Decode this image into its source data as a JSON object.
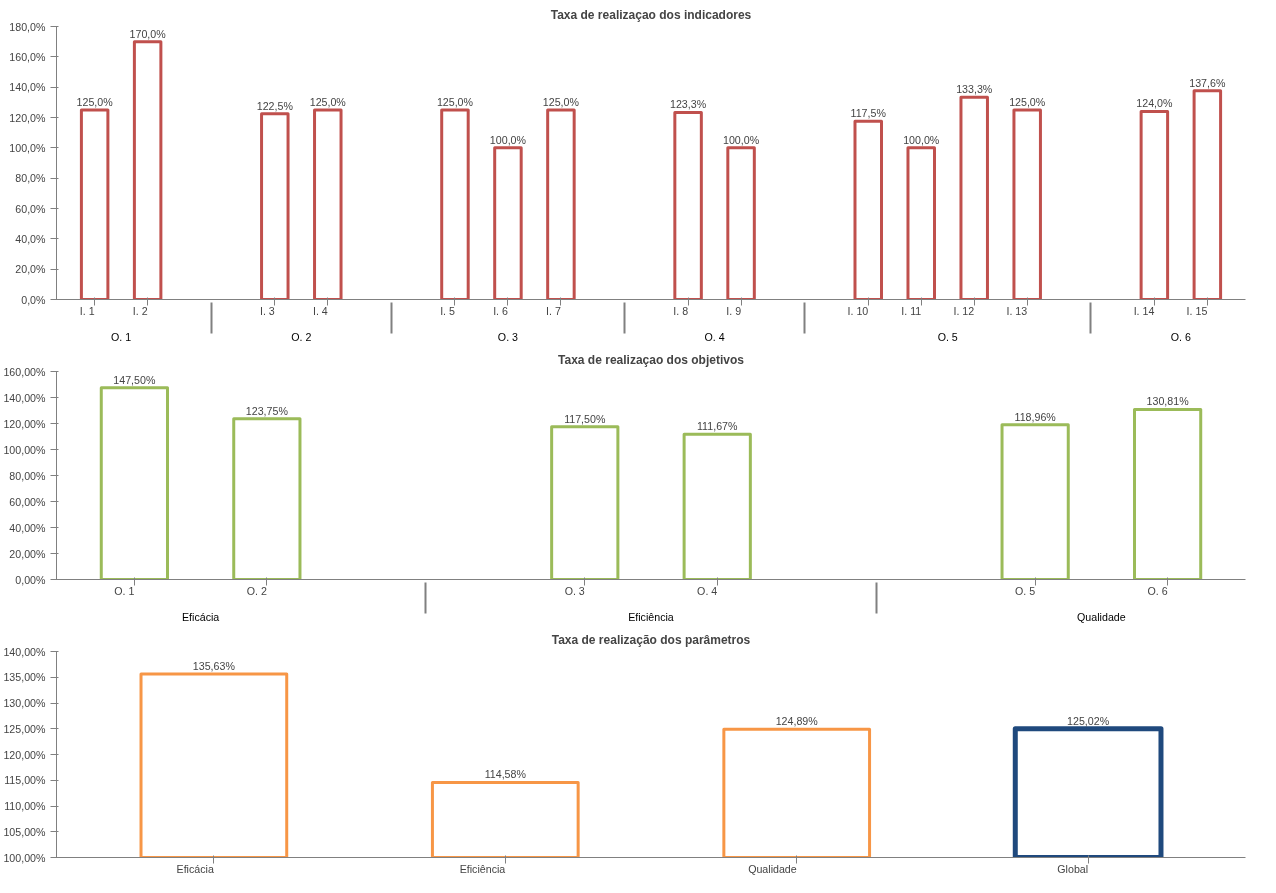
{
  "chart_data": [
    {
      "type": "bar",
      "title": "Taxa de realizaçao dos indicadores",
      "categories": [
        "I. 1",
        "I. 2",
        "I. 3",
        "I. 4",
        "I. 5",
        "I. 6",
        "I. 7",
        "I. 8",
        "I. 9",
        "I. 10",
        "I. 11",
        "I. 12",
        "I. 13",
        "I. 14",
        "I. 15"
      ],
      "values": [
        125.0,
        170.0,
        122.5,
        125.0,
        125.0,
        100.0,
        125.0,
        123.3,
        100.0,
        117.5,
        100.0,
        133.3,
        125.0,
        124.0,
        137.6
      ],
      "value_labels": [
        "125,0%",
        "170,0%",
        "122,5%",
        "125,0%",
        "125,0%",
        "100,0%",
        "125,0%",
        "123,3%",
        "100,0%",
        "117,5%",
        "100,0%",
        "133,3%",
        "125,0%",
        "124,0%",
        "137,6%"
      ],
      "color": "#c0504d",
      "ylim": [
        0,
        180
      ],
      "yticks": [
        {
          "value": 0,
          "label": "0,0%"
        },
        {
          "value": 20,
          "label": "20,0%"
        },
        {
          "value": 40,
          "label": "40,0%"
        },
        {
          "value": 60,
          "label": "60,0%"
        },
        {
          "value": 80,
          "label": "80,0%"
        },
        {
          "value": 100,
          "label": "100,0%"
        },
        {
          "value": 120,
          "label": "120,0%"
        },
        {
          "value": 140,
          "label": "140,0%"
        },
        {
          "value": 160,
          "label": "160,0%"
        },
        {
          "value": 180,
          "label": "180,0%"
        }
      ],
      "annotations": [
        "O. 1",
        "O. 2",
        "O. 3",
        "O. 4",
        "O. 5",
        "O. 6"
      ],
      "grid": false
    },
    {
      "type": "bar",
      "title": "Taxa de realizaçao dos objetivos",
      "categories": [
        "O. 1",
        "O. 2",
        "O. 3",
        "O. 4",
        "O. 5",
        "O. 6"
      ],
      "values": [
        147.5,
        123.75,
        117.5,
        111.67,
        118.96,
        130.81
      ],
      "value_labels": [
        "147,50%",
        "123,75%",
        "117,50%",
        "111,67%",
        "118,96%",
        "130,81%"
      ],
      "color": "#9bbb59",
      "ylim": [
        0,
        160
      ],
      "yticks": [
        {
          "value": 0,
          "label": "0,00%"
        },
        {
          "value": 20,
          "label": "20,00%"
        },
        {
          "value": 40,
          "label": "40,00%"
        },
        {
          "value": 60,
          "label": "60,00%"
        },
        {
          "value": 80,
          "label": "80,00%"
        },
        {
          "value": 100,
          "label": "100,00%"
        },
        {
          "value": 120,
          "label": "120,00%"
        },
        {
          "value": 140,
          "label": "140,00%"
        },
        {
          "value": 160,
          "label": "160,00%"
        }
      ],
      "annotations": [
        "Eficácia",
        "Eficiência",
        "Qualidade"
      ],
      "grid": false
    },
    {
      "type": "bar",
      "title": "Taxa de realização dos parâmetros",
      "categories": [
        "Eficácia",
        "Eficiência",
        "Qualidade",
        "Global"
      ],
      "values": [
        135.63,
        114.58,
        124.89,
        125.02
      ],
      "value_labels": [
        "135,63%",
        "114,58%",
        "124,89%",
        "125,02%"
      ],
      "colors": [
        "#f79646",
        "#f79646",
        "#f79646",
        "#1f497d"
      ],
      "ylim": [
        100,
        140
      ],
      "yticks": [
        {
          "value": 100,
          "label": "100,00%"
        },
        {
          "value": 105,
          "label": "105,00%"
        },
        {
          "value": 110,
          "label": "110,00%"
        },
        {
          "value": 115,
          "label": "115,00%"
        },
        {
          "value": 120,
          "label": "120,00%"
        },
        {
          "value": 125,
          "label": "125,00%"
        },
        {
          "value": 130,
          "label": "130,00%"
        },
        {
          "value": 135,
          "label": "135,00%"
        },
        {
          "value": 140,
          "label": "140,00%"
        }
      ],
      "grid": false
    }
  ]
}
